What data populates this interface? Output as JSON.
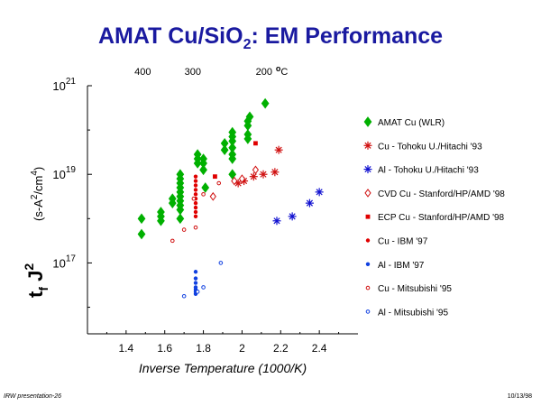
{
  "title_main": "AMAT Cu/SiO",
  "title_sub": "2",
  "title_tail": ": EM Performance",
  "footer_left": "IRW presentation-26",
  "footer_right": "10/13/98",
  "chart_data": {
    "type": "scatter",
    "xlabel": "Inverse Temperature (1000/K)",
    "ylabel_base": "t",
    "ylabel_sub": "f",
    "ylabel_j": "J",
    "ylabel_exp": "2",
    "ylabel_units_pre": "(s-A",
    "ylabel_units_exp1": "2",
    "ylabel_units_mid": "/cm",
    "ylabel_units_exp2": "4",
    "ylabel_units_post": ")",
    "xlim": [
      1.2,
      2.6
    ],
    "ylim": [
      15.4,
      21.0
    ],
    "yscale": "log",
    "xticks": [
      1.4,
      1.6,
      1.8,
      2.0,
      2.2,
      2.4
    ],
    "xtick_labels": [
      "1.4",
      "1.6",
      "1.8",
      "2",
      "2.2",
      "2.4"
    ],
    "yticks": [
      17,
      19,
      21
    ],
    "ytick_labels": [
      {
        "base": "10",
        "exp": "17"
      },
      {
        "base": "10",
        "exp": "19"
      },
      {
        "base": "10",
        "exp": "21"
      }
    ],
    "top_axis": {
      "labels": [
        "400",
        "300",
        "200"
      ],
      "positions": [
        1.486,
        1.745,
        2.114
      ],
      "unit_prefix": "o",
      "unit": "C"
    },
    "series": [
      {
        "name": "AMAT Cu (WLR)",
        "marker": "diamond-filled",
        "color": "#00b000",
        "points": [
          [
            1.48,
            18.0
          ],
          [
            1.48,
            17.65
          ],
          [
            1.58,
            18.15
          ],
          [
            1.58,
            18.05
          ],
          [
            1.58,
            17.95
          ],
          [
            1.64,
            18.35
          ],
          [
            1.64,
            18.45
          ],
          [
            1.68,
            18.0
          ],
          [
            1.68,
            18.2
          ],
          [
            1.68,
            18.3
          ],
          [
            1.68,
            18.4
          ],
          [
            1.68,
            18.5
          ],
          [
            1.68,
            18.6
          ],
          [
            1.68,
            18.7
          ],
          [
            1.68,
            18.8
          ],
          [
            1.68,
            18.9
          ],
          [
            1.68,
            19.0
          ],
          [
            1.77,
            19.25
          ],
          [
            1.77,
            19.35
          ],
          [
            1.77,
            19.45
          ],
          [
            1.8,
            19.1
          ],
          [
            1.8,
            19.25
          ],
          [
            1.8,
            19.35
          ],
          [
            1.81,
            18.7
          ],
          [
            1.91,
            19.55
          ],
          [
            1.91,
            19.7
          ],
          [
            1.95,
            19.0
          ],
          [
            1.95,
            19.35
          ],
          [
            1.95,
            19.45
          ],
          [
            1.95,
            19.6
          ],
          [
            1.95,
            19.75
          ],
          [
            1.95,
            19.85
          ],
          [
            1.95,
            19.95
          ],
          [
            2.03,
            19.8
          ],
          [
            2.03,
            19.9
          ],
          [
            2.03,
            20.1
          ],
          [
            2.03,
            20.2
          ],
          [
            2.04,
            20.3
          ],
          [
            2.12,
            20.6
          ]
        ]
      },
      {
        "name": "Cu - Tohoku U./Hitachi '93",
        "marker": "asterisk",
        "color": "#d01010",
        "points": [
          [
            1.98,
            18.8
          ],
          [
            2.01,
            18.85
          ],
          [
            2.06,
            18.95
          ],
          [
            2.11,
            19.0
          ],
          [
            2.17,
            19.05
          ],
          [
            2.19,
            19.55
          ]
        ]
      },
      {
        "name": "Al - Tohoku U./Hitachi '93",
        "marker": "asterisk",
        "color": "#1010d0",
        "points": [
          [
            2.18,
            17.95
          ],
          [
            2.26,
            18.05
          ],
          [
            2.35,
            18.35
          ],
          [
            2.4,
            18.6
          ]
        ]
      },
      {
        "name": "CVD Cu - Stanford/HP/AMD '98",
        "marker": "diamond-open",
        "color": "#d01010",
        "points": [
          [
            1.85,
            18.5
          ],
          [
            1.96,
            18.85
          ],
          [
            2.0,
            18.9
          ],
          [
            2.07,
            19.1
          ]
        ]
      },
      {
        "name": "ECP Cu - Stanford/HP/AMD '98",
        "marker": "square-filled",
        "color": "#e00000",
        "points": [
          [
            1.86,
            18.95
          ],
          [
            2.07,
            19.7
          ]
        ]
      },
      {
        "name": "Cu - IBM '97",
        "marker": "circle-filled",
        "color": "#e00000",
        "points": [
          [
            1.76,
            18.05
          ],
          [
            1.76,
            18.15
          ],
          [
            1.76,
            18.25
          ],
          [
            1.76,
            18.35
          ],
          [
            1.76,
            18.45
          ],
          [
            1.76,
            18.55
          ],
          [
            1.76,
            18.65
          ],
          [
            1.76,
            18.75
          ],
          [
            1.76,
            18.85
          ],
          [
            1.76,
            18.95
          ]
        ]
      },
      {
        "name": "Al - IBM '97",
        "marker": "circle-filled",
        "color": "#1040e0",
        "points": [
          [
            1.76,
            16.3
          ],
          [
            1.76,
            16.35
          ],
          [
            1.76,
            16.4
          ],
          [
            1.76,
            16.45
          ],
          [
            1.76,
            16.55
          ],
          [
            1.76,
            16.65
          ],
          [
            1.76,
            16.8
          ]
        ]
      },
      {
        "name": "Cu - Mitsubishi '95",
        "marker": "circle-open",
        "color": "#d01010",
        "points": [
          [
            1.64,
            17.5
          ],
          [
            1.7,
            17.75
          ],
          [
            1.76,
            17.8
          ],
          [
            1.75,
            18.45
          ],
          [
            1.8,
            18.55
          ],
          [
            1.88,
            18.8
          ]
        ]
      },
      {
        "name": "Al - Mitsubishi '95",
        "marker": "circle-open",
        "color": "#1040e0",
        "points": [
          [
            1.7,
            16.25
          ],
          [
            1.77,
            16.35
          ],
          [
            1.8,
            16.45
          ],
          [
            1.89,
            17.0
          ]
        ]
      }
    ]
  }
}
